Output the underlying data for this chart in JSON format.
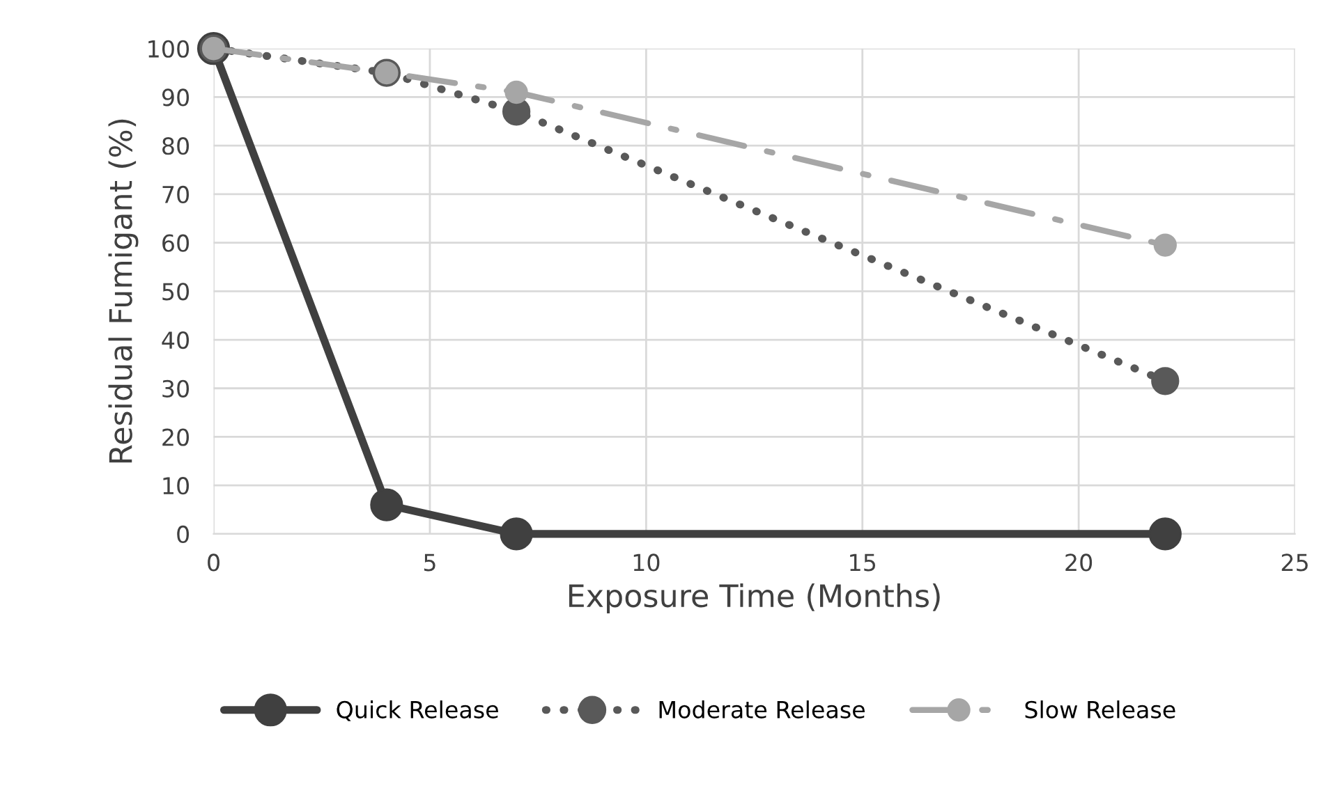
{
  "chart_data": {
    "type": "line",
    "xlabel": "Exposure Time (Months)",
    "ylabel": "Residual Fumigant (%)",
    "xlim": [
      0,
      25
    ],
    "xticks": [
      0,
      5,
      10,
      15,
      20,
      25
    ],
    "ylim": [
      0,
      100
    ],
    "yticks": [
      0,
      10,
      20,
      30,
      40,
      50,
      60,
      70,
      80,
      90,
      100
    ],
    "grid": true,
    "legend": "bottom",
    "marker": "circle",
    "x": [
      0,
      4,
      7,
      22
    ],
    "series": [
      {
        "name": "Quick Release",
        "color": "#404040",
        "line_style": "solid",
        "values": [
          100,
          6,
          0,
          0
        ]
      },
      {
        "name": "Moderate Release",
        "color": "#595959",
        "line_style": "dotted",
        "values": [
          100,
          95,
          87,
          31.5
        ]
      },
      {
        "name": "Slow Release",
        "color": "#a6a6a6",
        "line_style": "dashed",
        "values": [
          100,
          95,
          91,
          59.5
        ]
      }
    ]
  }
}
